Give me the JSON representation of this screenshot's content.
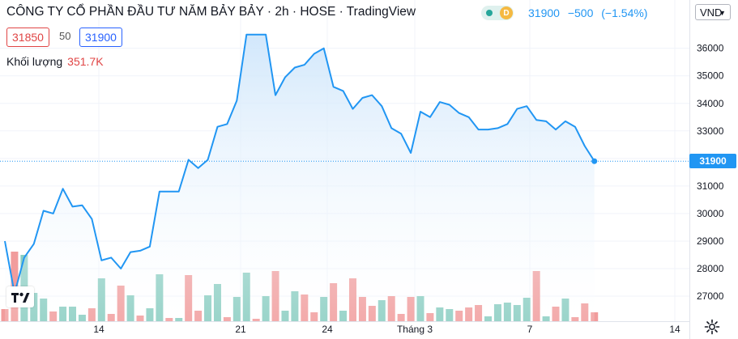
{
  "header": {
    "title": "CÔNG TY CỔ PHẦN ĐẦU TƯ NĂM BẢY BẢY · 2h · HOSE · TradingView",
    "market_status_badge": "D",
    "last_price": "31900",
    "change": "−500",
    "change_pct": "(−1.54%)",
    "bid": "31850",
    "lot": "50",
    "ask": "31900",
    "volume_label": "Khối lượng",
    "volume_value": "351.7K",
    "currency": "VND",
    "currency_chevron": "▼"
  },
  "colors": {
    "line": "#2196f3",
    "area_top": "#cfe6fb",
    "up_volume": "#89cdc1",
    "down_volume": "#f19c9c",
    "down_text": "#e04545",
    "ask_border": "#2962ff",
    "status_green": "#26a69a",
    "status_orange": "#f5b942"
  },
  "chart_data": {
    "type": "area",
    "x_ticks": [
      "14",
      "21",
      "24",
      "Tháng 3",
      "7",
      "14"
    ],
    "y_ticks": [
      27000,
      28000,
      29000,
      30000,
      31000,
      32000,
      33000,
      34000,
      35000,
      36000
    ],
    "ylim": [
      26120,
      37470
    ],
    "grid": true,
    "price_series": [
      29000,
      27100,
      28400,
      28900,
      30100,
      30000,
      30900,
      30250,
      30300,
      29800,
      28300,
      28400,
      28000,
      28600,
      28650,
      28800,
      30800,
      30800,
      30800,
      31950,
      31650,
      31950,
      33150,
      33250,
      34100,
      36500,
      36500,
      36500,
      34300,
      34950,
      35300,
      35400,
      35800,
      36000,
      34600,
      34450,
      33800,
      34200,
      34300,
      33900,
      33100,
      32900,
      32200,
      33700,
      33500,
      34050,
      33950,
      33650,
      33500,
      33050,
      33050,
      33100,
      33250,
      33800,
      33900,
      33400,
      33350,
      33050,
      33350,
      33150,
      32450,
      31900
    ],
    "last_price": 31900,
    "volume_series": [
      {
        "v": 1.5,
        "dir": "down"
      },
      {
        "v": 8.6,
        "dir": "down"
      },
      {
        "v": 8.2,
        "dir": "up"
      },
      {
        "v": 3.5,
        "dir": "up"
      },
      {
        "v": 2.8,
        "dir": "up"
      },
      {
        "v": 1.2,
        "dir": "down"
      },
      {
        "v": 1.8,
        "dir": "up"
      },
      {
        "v": 1.8,
        "dir": "up"
      },
      {
        "v": 0.8,
        "dir": "up"
      },
      {
        "v": 1.6,
        "dir": "down"
      },
      {
        "v": 5.3,
        "dir": "up"
      },
      {
        "v": 0.9,
        "dir": "down"
      },
      {
        "v": 4.4,
        "dir": "down"
      },
      {
        "v": 3.2,
        "dir": "up"
      },
      {
        "v": 0.7,
        "dir": "down"
      },
      {
        "v": 1.6,
        "dir": "up"
      },
      {
        "v": 5.8,
        "dir": "up"
      },
      {
        "v": 0.4,
        "dir": "down"
      },
      {
        "v": 0.4,
        "dir": "up"
      },
      {
        "v": 5.7,
        "dir": "down"
      },
      {
        "v": 1.3,
        "dir": "down"
      },
      {
        "v": 3.2,
        "dir": "up"
      },
      {
        "v": 4.6,
        "dir": "up"
      },
      {
        "v": 0.5,
        "dir": "down"
      },
      {
        "v": 3.0,
        "dir": "up"
      },
      {
        "v": 6.0,
        "dir": "up"
      },
      {
        "v": 0.3,
        "dir": "down"
      },
      {
        "v": 3.1,
        "dir": "up"
      },
      {
        "v": 6.2,
        "dir": "down"
      },
      {
        "v": 1.3,
        "dir": "up"
      },
      {
        "v": 3.7,
        "dir": "up"
      },
      {
        "v": 3.3,
        "dir": "down"
      },
      {
        "v": 1.1,
        "dir": "down"
      },
      {
        "v": 3.0,
        "dir": "up"
      },
      {
        "v": 4.7,
        "dir": "down"
      },
      {
        "v": 1.3,
        "dir": "up"
      },
      {
        "v": 5.3,
        "dir": "down"
      },
      {
        "v": 3.0,
        "dir": "down"
      },
      {
        "v": 1.9,
        "dir": "down"
      },
      {
        "v": 2.6,
        "dir": "up"
      },
      {
        "v": 3.1,
        "dir": "down"
      },
      {
        "v": 0.9,
        "dir": "down"
      },
      {
        "v": 3.0,
        "dir": "down"
      },
      {
        "v": 3.1,
        "dir": "up"
      },
      {
        "v": 1.0,
        "dir": "down"
      },
      {
        "v": 1.7,
        "dir": "up"
      },
      {
        "v": 1.5,
        "dir": "up"
      },
      {
        "v": 1.3,
        "dir": "down"
      },
      {
        "v": 1.7,
        "dir": "down"
      },
      {
        "v": 2.0,
        "dir": "down"
      },
      {
        "v": 0.6,
        "dir": "up"
      },
      {
        "v": 2.1,
        "dir": "up"
      },
      {
        "v": 2.3,
        "dir": "up"
      },
      {
        "v": 2.0,
        "dir": "up"
      },
      {
        "v": 2.9,
        "dir": "up"
      },
      {
        "v": 6.2,
        "dir": "down"
      },
      {
        "v": 0.6,
        "dir": "up"
      },
      {
        "v": 1.8,
        "dir": "down"
      },
      {
        "v": 2.8,
        "dir": "up"
      },
      {
        "v": 0.5,
        "dir": "down"
      },
      {
        "v": 2.2,
        "dir": "down"
      },
      {
        "v": 1.1,
        "dir": "down"
      }
    ]
  }
}
